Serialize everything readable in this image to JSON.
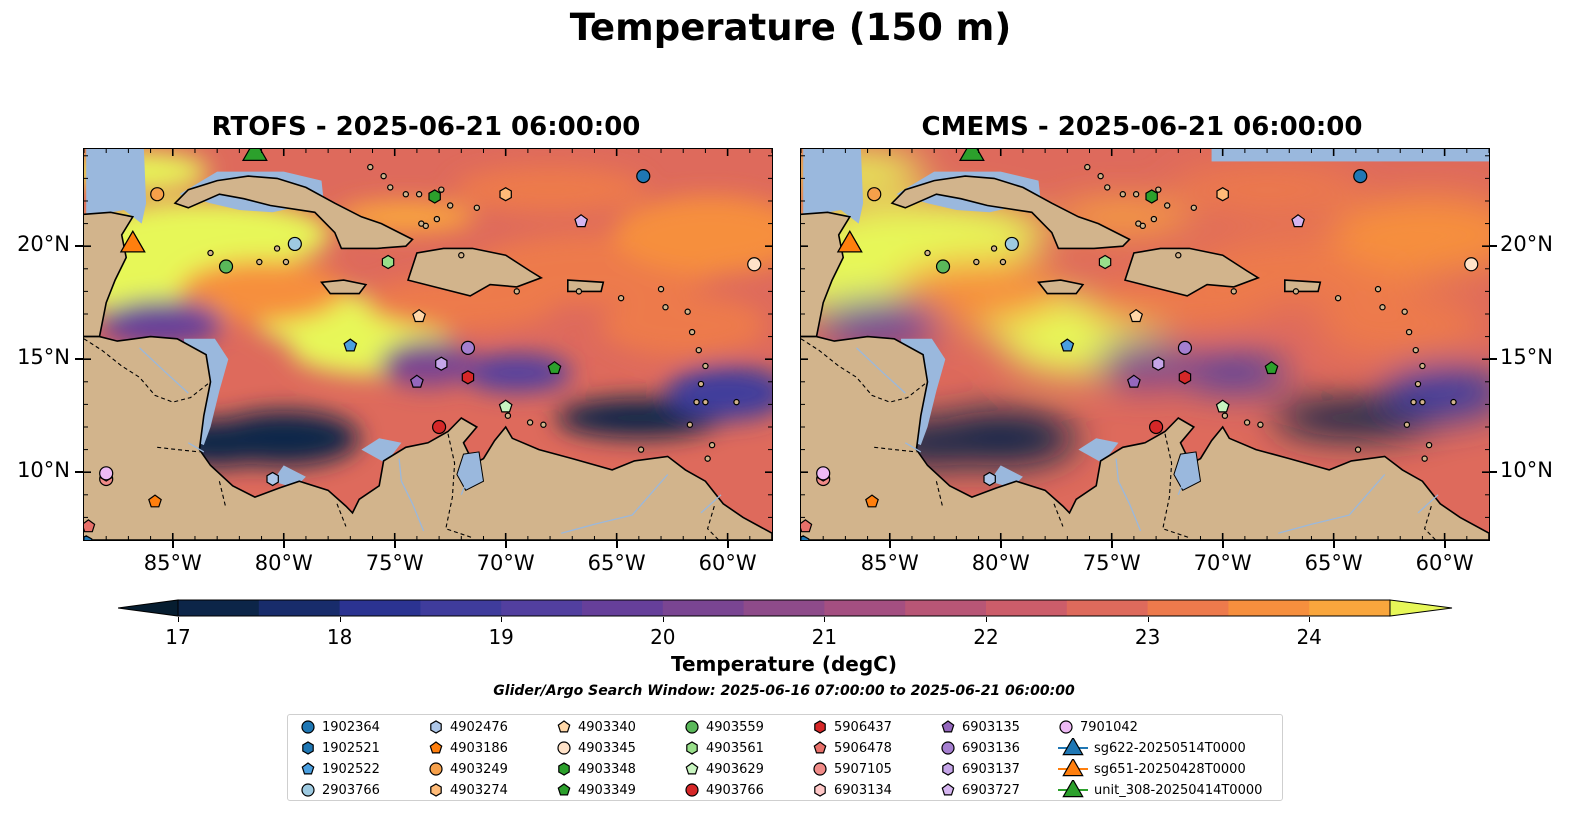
{
  "suptitle": "Temperature (150 m)",
  "panels": [
    {
      "title": "RTOFS - 2025-06-21 06:00:00",
      "variant": "rtofs"
    },
    {
      "title": "CMEMS - 2025-06-21 06:00:00",
      "variant": "cmems"
    }
  ],
  "chart_data": {
    "type": "heatmap",
    "map_extent": {
      "lon": [
        -89,
        -58
      ],
      "lat": [
        7,
        24.3
      ]
    },
    "lon_ticks": [
      {
        "value": -85,
        "label": "85°W"
      },
      {
        "value": -80,
        "label": "80°W"
      },
      {
        "value": -75,
        "label": "75°W"
      },
      {
        "value": -70,
        "label": "70°W"
      },
      {
        "value": -65,
        "label": "65°W"
      },
      {
        "value": -60,
        "label": "60°W"
      }
    ],
    "lat_ticks": [
      {
        "value": 10,
        "label": "10°N"
      },
      {
        "value": 15,
        "label": "15°N"
      },
      {
        "value": 20,
        "label": "20°N"
      }
    ],
    "colorbar": {
      "label": "Temperature (degC)",
      "range": [
        17,
        24.5
      ],
      "levels": [
        17,
        17.5,
        18,
        18.5,
        19,
        19.5,
        20,
        20.5,
        21,
        21.5,
        22,
        22.5,
        23,
        23.5,
        24,
        24.5
      ],
      "tick_values": [
        17,
        18,
        19,
        20,
        21,
        22,
        23,
        24
      ],
      "tick_labels": [
        "17",
        "18",
        "19",
        "20",
        "21",
        "22",
        "23",
        "24"
      ],
      "colors": [
        "#0c2548",
        "#182c6b",
        "#2b3391",
        "#3f3c9c",
        "#523f9f",
        "#663f9a",
        "#7a4592",
        "#8e4b8a",
        "#a44f81",
        "#b85676",
        "#cc5d6a",
        "#de6a5c",
        "#ed7a4c",
        "#f68f3e",
        "#f9a63d",
        "#f6c74d"
      ],
      "under_color": "#061d30",
      "over_color": "#e7f758",
      "extend": "both"
    },
    "search_window": "Glider/Argo Search Window: 2025-06-16 07:00:00 to 2025-06-21 06:00:00",
    "observations": [
      {
        "id": "1902364",
        "lon": -63.8,
        "lat": 23.1,
        "marker": "circle",
        "color": "#1f77b4"
      },
      {
        "id": "1902521",
        "lon": -88.9,
        "lat": 6.9,
        "marker": "hexagon",
        "color": "#1f77b4"
      },
      {
        "id": "1902522",
        "lon": -77.0,
        "lat": 15.6,
        "marker": "pentagon",
        "color": "#4a9fe0"
      },
      {
        "id": "2903766",
        "lon": -79.5,
        "lat": 20.1,
        "marker": "circle",
        "color": "#9ecae1"
      },
      {
        "id": "4902476",
        "lon": -80.5,
        "lat": 9.7,
        "marker": "hexagon",
        "color": "#aec7e8"
      },
      {
        "id": "4903186",
        "lon": -85.8,
        "lat": 8.7,
        "marker": "pentagon",
        "color": "#ff7f0e"
      },
      {
        "id": "4903249",
        "lon": -85.7,
        "lat": 22.3,
        "marker": "circle",
        "color": "#f6a04a"
      },
      {
        "id": "4903274",
        "lon": -70.0,
        "lat": 22.3,
        "marker": "hexagon",
        "color": "#ffbb78"
      },
      {
        "id": "4903340",
        "lon": -73.9,
        "lat": 16.9,
        "marker": "pentagon",
        "color": "#ffd7a8"
      },
      {
        "id": "4903345",
        "lon": -58.8,
        "lat": 19.2,
        "marker": "circle",
        "color": "#ffe2c8"
      },
      {
        "id": "4903348",
        "lon": -73.2,
        "lat": 22.2,
        "marker": "hexagon",
        "color": "#2ca02c"
      },
      {
        "id": "4903349",
        "lon": -67.8,
        "lat": 14.6,
        "marker": "pentagon",
        "color": "#2ca02c"
      },
      {
        "id": "4903559",
        "lon": -82.6,
        "lat": 19.1,
        "marker": "circle",
        "color": "#5ab85a"
      },
      {
        "id": "4903561",
        "lon": -75.3,
        "lat": 19.3,
        "marker": "hexagon",
        "color": "#98df8a"
      },
      {
        "id": "4903629",
        "lon": -70.0,
        "lat": 12.9,
        "marker": "pentagon",
        "color": "#c8f5c0"
      },
      {
        "id": "4903766",
        "lon": -73.0,
        "lat": 12.0,
        "marker": "circle",
        "color": "#d62728"
      },
      {
        "id": "5906437",
        "lon": -71.7,
        "lat": 14.2,
        "marker": "hexagon",
        "color": "#d62728"
      },
      {
        "id": "5906478",
        "lon": -88.8,
        "lat": 7.6,
        "marker": "pentagon",
        "color": "#e8706a"
      },
      {
        "id": "5907105",
        "lon": -88.0,
        "lat": 9.7,
        "marker": "circle",
        "color": "#f08b88"
      },
      {
        "id": "6903134",
        "lon": -88.0,
        "lat": 9.9,
        "marker": "hexagon",
        "color": "#ffc8c8"
      },
      {
        "id": "6903135",
        "lon": -74.0,
        "lat": 14.0,
        "marker": "pentagon",
        "color": "#9467bd"
      },
      {
        "id": "6903136",
        "lon": -71.7,
        "lat": 15.5,
        "marker": "circle",
        "color": "#a57fd0"
      },
      {
        "id": "6903137",
        "lon": -72.9,
        "lat": 14.8,
        "marker": "hexagon",
        "color": "#c5a5e8"
      },
      {
        "id": "6903727",
        "lon": -66.6,
        "lat": 21.1,
        "marker": "pentagon",
        "color": "#d5b5f0"
      },
      {
        "id": "7901042",
        "lon": -88.0,
        "lat": 9.95,
        "marker": "circle",
        "color": "#eebaf5"
      },
      {
        "id": "sg622-20250514T0000",
        "lon": -86.8,
        "lat": 20.05,
        "marker": "triangle",
        "color": "#1f77b4"
      },
      {
        "id": "sg651-20250428T0000",
        "lon": -86.8,
        "lat": 20.05,
        "marker": "triangle",
        "color": "#ff7f0e"
      },
      {
        "id": "unit_308-20250414T0000",
        "lon": -81.3,
        "lat": 24.1,
        "marker": "triangle",
        "color": "#2ca02c"
      }
    ]
  }
}
